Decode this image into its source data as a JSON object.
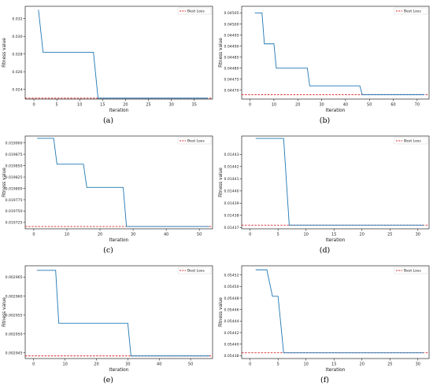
{
  "colors": {
    "line": "#1f77b4",
    "best": "#d62728"
  },
  "panels": [
    {
      "caption": "(a)",
      "chart_data": {
        "type": "line",
        "xlabel": "Iteration",
        "ylabel": "Fitness value",
        "legend": "Best Loss",
        "legend_position": "top-right",
        "xlim": [
          -1.9,
          39.0
        ],
        "ylim": [
          0.0229,
          0.0334
        ],
        "xticks": [
          0,
          5,
          10,
          15,
          20,
          25,
          30,
          35
        ],
        "yticks": [
          0.024,
          0.026,
          0.028,
          0.03,
          0.032
        ],
        "ytick_labels": [
          "0.024",
          "0.026",
          "0.028",
          "0.030",
          "0.032"
        ],
        "series": [
          {
            "x": [
              1,
              2,
              13,
              14,
              38
            ],
            "y": [
              0.033,
              0.0282,
              0.0282,
              0.023,
              0.023
            ]
          }
        ],
        "best_loss": 0.023
      }
    },
    {
      "caption": "(b)",
      "chart_data": {
        "type": "line",
        "xlabel": "Iteration",
        "ylabel": "Fitness value",
        "legend": "Best Loss",
        "legend_position": "top-right",
        "xlim": [
          -3.5,
          75.0
        ],
        "ylim": [
          0.04466,
          0.04508
        ],
        "xticks": [
          0,
          10,
          20,
          30,
          40,
          50,
          60,
          70
        ],
        "yticks": [
          0.0447,
          0.04475,
          0.0448,
          0.04485,
          0.0449,
          0.04495,
          0.045,
          0.04505
        ],
        "ytick_labels": [
          "0.04470",
          "0.04475",
          "0.04480",
          "0.04485",
          "0.04490",
          "0.04495",
          "0.04500",
          "0.04505"
        ],
        "series": [
          {
            "x": [
              2,
              5,
              6,
              10,
              11,
              24,
              25,
              46,
              47,
              73
            ],
            "y": [
              0.04505,
              0.04505,
              0.04491,
              0.04491,
              0.0448,
              0.0448,
              0.04472,
              0.04472,
              0.04468,
              0.04468
            ]
          }
        ],
        "best_loss": 0.04468
      }
    },
    {
      "caption": "(c)",
      "chart_data": {
        "type": "line",
        "xlabel": "Iteration",
        "ylabel": "Fitness value",
        "legend": "Best Loss",
        "legend_position": "top-right",
        "xlim": [
          -2.6,
          54.0
        ],
        "ylim": [
          0.019711,
          0.019915
        ],
        "xticks": [
          0,
          10,
          20,
          30,
          40,
          50
        ],
        "yticks": [
          0.019725,
          0.01975,
          0.019775,
          0.0198,
          0.019825,
          0.01985,
          0.019875,
          0.0199
        ],
        "ytick_labels": [
          "0.019725",
          "0.019750",
          "0.019775",
          "0.019800",
          "0.019825",
          "0.019850",
          "0.019875",
          "0.019900"
        ],
        "series": [
          {
            "x": [
              1,
              6,
              7,
              15,
              16,
              27,
              28,
              53
            ],
            "y": [
              0.01991,
              0.01991,
              0.019853,
              0.019853,
              0.019802,
              0.019802,
              0.019716,
              0.019716
            ]
          }
        ],
        "best_loss": 0.019716
      }
    },
    {
      "caption": "(d)",
      "chart_data": {
        "type": "line",
        "xlabel": "Iteration",
        "ylabel": "Fitness value",
        "legend": "Best Loss",
        "legend_position": "top-right",
        "xlim": [
          -1.5,
          32.0
        ],
        "ylim": [
          0.014369,
          0.014445
        ],
        "xticks": [
          0,
          5,
          10,
          15,
          20,
          25,
          30
        ],
        "yticks": [
          0.01437,
          0.01438,
          0.01439,
          0.0144,
          0.01441,
          0.01442,
          0.01443
        ],
        "ytick_labels": [
          "0.01437",
          "0.01438",
          "0.01439",
          "0.01440",
          "0.01441",
          "0.01442",
          "0.01443"
        ],
        "series": [
          {
            "x": [
              1,
              6,
              7,
              31
            ],
            "y": [
              0.014443,
              0.014443,
              0.014372,
              0.014372
            ]
          }
        ],
        "best_loss": 0.014372
      }
    },
    {
      "caption": "(e)",
      "chart_data": {
        "type": "line",
        "xlabel": "Iteration",
        "ylabel": "Fitness value",
        "legend": "Best Loss",
        "legend_position": "top-right",
        "xlim": [
          -2.7,
          57.0
        ],
        "ylim": [
          0.0029435,
          0.002968
        ],
        "xticks": [
          0,
          10,
          20,
          30,
          40,
          50
        ],
        "yticks": [
          0.002945,
          0.00295,
          0.002955,
          0.00296,
          0.002965
        ],
        "ytick_labels": [
          "0.002945",
          "0.002950",
          "0.002955",
          "0.002960",
          "0.002965"
        ],
        "series": [
          {
            "x": [
              1,
              7,
              8,
              30,
              31,
              56
            ],
            "y": [
              0.0029668,
              0.0029668,
              0.0029528,
              0.0029528,
              0.0029442,
              0.0029442
            ]
          }
        ],
        "best_loss": 0.0029442
      }
    },
    {
      "caption": "(f)",
      "chart_data": {
        "type": "line",
        "xlabel": "Iteration",
        "ylabel": "Fitness value",
        "legend": "Best Loss",
        "legend_position": "top-right",
        "xlim": [
          -1.5,
          32.0
        ],
        "ylim": [
          0.054375,
          0.054536
        ],
        "xticks": [
          0,
          5,
          10,
          15,
          20,
          25,
          30
        ],
        "yticks": [
          0.05438,
          0.0544,
          0.05442,
          0.05444,
          0.05446,
          0.05448,
          0.0545,
          0.05452
        ],
        "ytick_labels": [
          "0.05438",
          "0.05440",
          "0.05442",
          "0.05444",
          "0.05446",
          "0.05448",
          "0.05450",
          "0.05452"
        ],
        "series": [
          {
            "x": [
              1,
              3,
              4,
              5,
              6,
              31
            ],
            "y": [
              0.054529,
              0.054529,
              0.054483,
              0.054483,
              0.054385,
              0.054385
            ]
          }
        ],
        "best_loss": 0.054385
      }
    }
  ]
}
